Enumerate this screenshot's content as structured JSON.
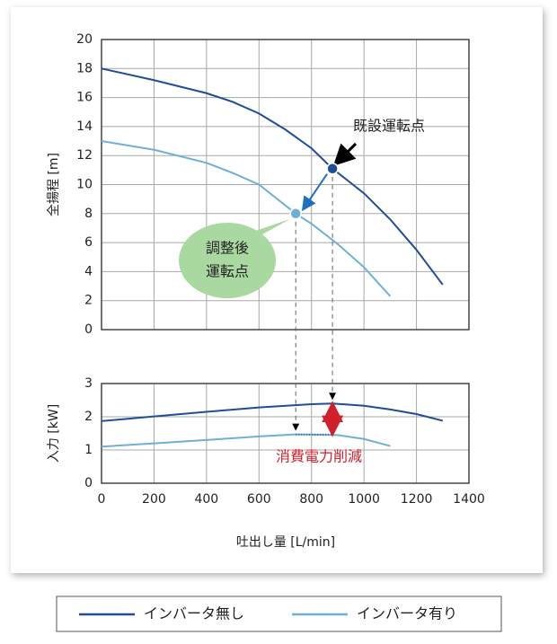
{
  "chart_data": [
    {
      "type": "line",
      "ylabel": "全揚程 [m]",
      "xlim": [
        0,
        1400
      ],
      "xticks": [
        0,
        200,
        400,
        600,
        800,
        1000,
        1200,
        1400
      ],
      "ylim": [
        0,
        20
      ],
      "yticks": [
        0,
        2,
        4,
        6,
        8,
        10,
        12,
        14,
        16,
        18,
        20
      ],
      "grid": true,
      "series": [
        {
          "name": "インバータ無し",
          "color": "#1f4e96",
          "x": [
            0,
            200,
            400,
            500,
            600,
            700,
            800,
            880,
            1000,
            1100,
            1200,
            1300
          ],
          "values": [
            18,
            17.2,
            16.3,
            15.7,
            14.9,
            13.8,
            12.5,
            11.1,
            9.4,
            7.6,
            5.5,
            3.1
          ]
        },
        {
          "name": "インバータ有り",
          "color": "#6fb0d8",
          "x": [
            0,
            200,
            400,
            500,
            600,
            740,
            800,
            900,
            1000,
            1100
          ],
          "values": [
            13,
            12.4,
            11.5,
            10.8,
            10.0,
            8.0,
            7.3,
            5.9,
            4.3,
            2.3
          ]
        }
      ],
      "points": [
        {
          "x": 880,
          "y": 11.1,
          "color": "#1f4e96",
          "label": [
            "既設運転点"
          ]
        },
        {
          "x": 740,
          "y": 8.0,
          "color": "#6fb0d8",
          "label": [
            "調整後",
            "運転点"
          ]
        }
      ]
    },
    {
      "type": "line",
      "ylabel": "入力 [kW]",
      "xlabel": "吐出し量 [L/min]",
      "xlim": [
        0,
        1400
      ],
      "xticks": [
        0,
        200,
        400,
        600,
        800,
        1000,
        1200,
        1400
      ],
      "ylim": [
        0,
        3
      ],
      "yticks": [
        0,
        1,
        2,
        3
      ],
      "grid": true,
      "series": [
        {
          "color": "#1f4e96",
          "x": [
            0,
            200,
            400,
            600,
            800,
            880,
            1000,
            1100,
            1200,
            1300
          ],
          "values": [
            1.87,
            2.01,
            2.15,
            2.28,
            2.38,
            2.4,
            2.33,
            2.22,
            2.08,
            1.88
          ]
        },
        {
          "color": "#6fb0d8",
          "x": [
            0,
            200,
            400,
            600,
            740,
            900,
            1000,
            1100
          ],
          "values": [
            1.1,
            1.2,
            1.3,
            1.41,
            1.47,
            1.45,
            1.33,
            1.12
          ]
        }
      ],
      "annotation": "消費電力削減"
    }
  ]
}
